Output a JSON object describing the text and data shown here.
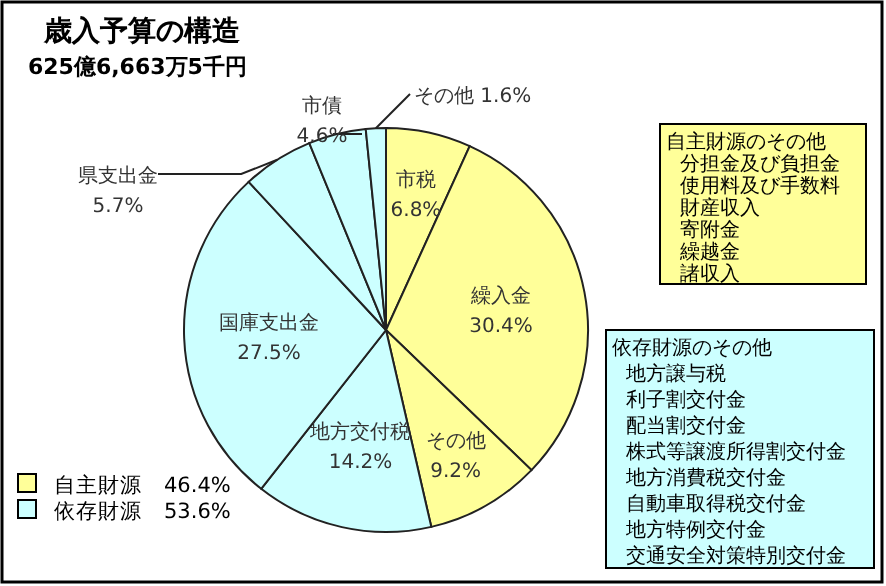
{
  "chart_data": {
    "type": "pie",
    "title": "歳入予算の構造",
    "subtitle": "625億6,663万5千円",
    "categories": [
      "市税",
      "繰入金",
      "その他",
      "地方交付税",
      "国庫支出金",
      "県支出金",
      "市債",
      "その他"
    ],
    "values": [
      6.8,
      30.4,
      9.2,
      14.2,
      27.5,
      5.7,
      4.6,
      1.6
    ],
    "colors": [
      "#ffff99",
      "#ffff99",
      "#ffff99",
      "#ccffff",
      "#ccffff",
      "#ccffff",
      "#ccffff",
      "#ccffff"
    ],
    "value_labels": [
      "6.8%",
      "30.4%",
      "9.2%",
      "14.2%",
      "27.5%",
      "5.7%",
      "4.6%",
      "1.6%"
    ],
    "annotations": [
      "自主財源のその他",
      "分担金及び負担金",
      "使用料及び手数料",
      "財産収入",
      "寄附金",
      "繰越金",
      "諸収入",
      "依存財源のその他",
      "地方譲与税",
      "利子割交付金",
      "配当割交付金",
      "株式等譲渡所得割交付金",
      "地方消費税交付金",
      "自動車取得税交付金",
      "地方特例交付金",
      "交通安全対策特別交付金",
      "自主財源　46.4%",
      "依存財源　53.6%"
    ]
  }
}
